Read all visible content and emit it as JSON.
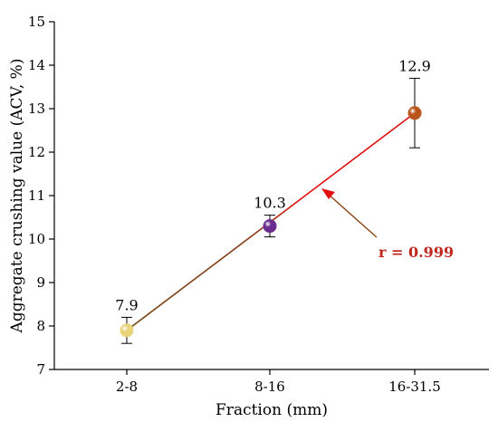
{
  "chart_data": {
    "type": "scatter",
    "xlabel": "Fraction (mm)",
    "ylabel": "Aggregate crushing value (ACV, %)",
    "categories": [
      "2-8",
      "8-16",
      "16-31.5"
    ],
    "values": [
      7.9,
      10.3,
      12.9
    ],
    "error_low": [
      7.6,
      10.05,
      12.1
    ],
    "error_high": [
      8.2,
      10.55,
      13.7
    ],
    "data_labels": [
      "7.9",
      "10.3",
      "12.9"
    ],
    "point_colors": [
      "#e8d27a",
      "#6a2c8e",
      "#b8541c"
    ],
    "ylim": [
      7,
      15
    ],
    "yticks": [
      7,
      8,
      9,
      10,
      11,
      12,
      13,
      14,
      15
    ],
    "grid": false,
    "fit_line": {
      "from": [
        7.9
      ],
      "to": [
        12.9
      ],
      "color": "#e01010"
    },
    "annotation": {
      "text": "r = 0.999",
      "color": "#c0281e",
      "arrow_color": "#8b4513"
    }
  }
}
